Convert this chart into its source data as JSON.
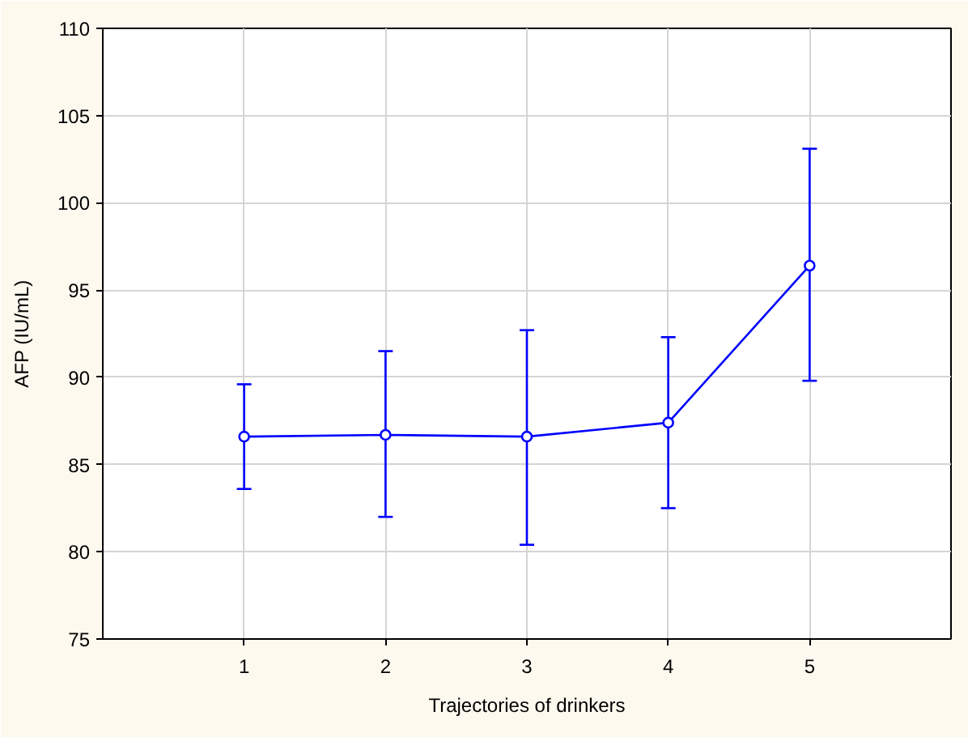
{
  "chart_data": {
    "type": "line",
    "xlabel": "Trajectories of drinkers",
    "ylabel": "AFP (IU/mL)",
    "x": [
      1,
      2,
      3,
      4,
      5
    ],
    "xlim": [
      0,
      6
    ],
    "xticks": [
      1,
      2,
      3,
      4,
      5
    ],
    "ylim": [
      75,
      110
    ],
    "yticks": [
      75,
      80,
      85,
      90,
      95,
      100,
      105,
      110
    ],
    "grid": true,
    "marker": "circle",
    "line_style": "solid",
    "series": [
      {
        "color": "#0000ff",
        "values": [
          86.6,
          86.7,
          86.6,
          87.4,
          96.4
        ],
        "errors": [
          [
            83.6,
            89.6
          ],
          [
            82.0,
            91.5
          ],
          [
            80.4,
            92.7
          ],
          [
            82.5,
            92.3
          ],
          [
            89.8,
            103.1
          ]
        ]
      }
    ]
  }
}
